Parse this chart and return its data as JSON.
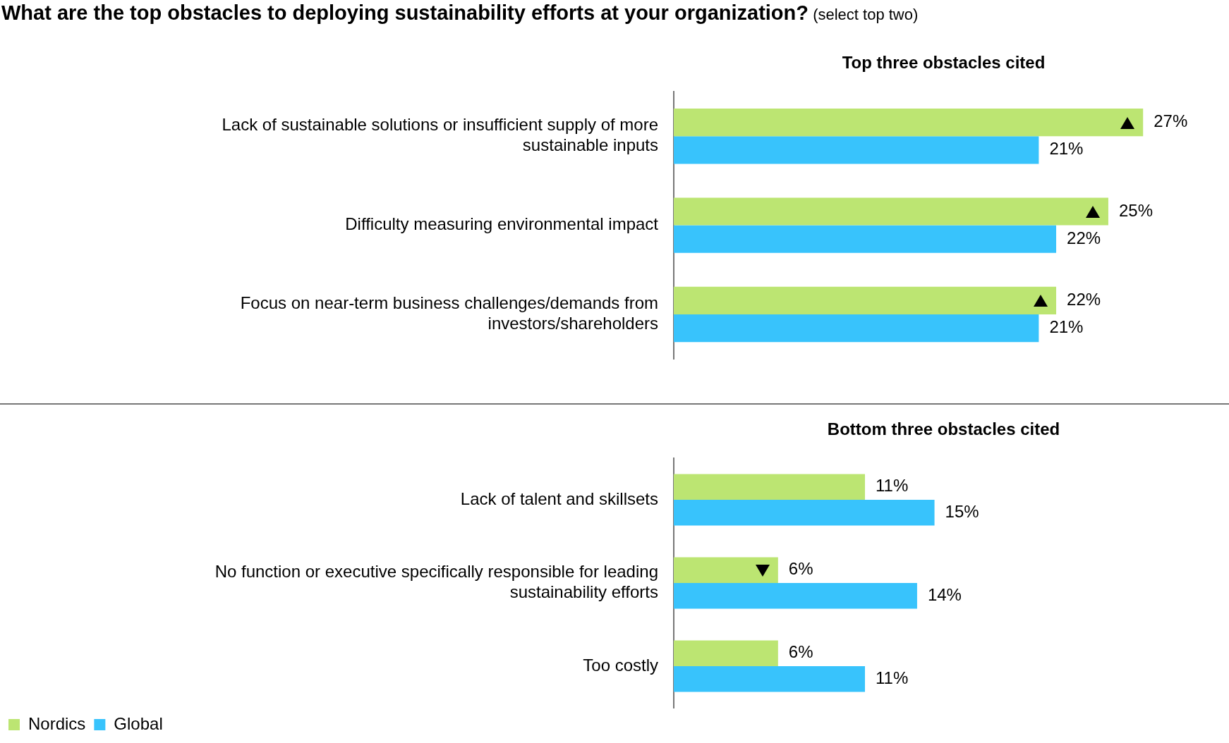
{
  "chart_data": [
    {
      "type": "bar",
      "orientation": "horizontal",
      "title": "What are the top obstacles to deploying sustainability efforts at your organization?",
      "subtitle": "(select top two)",
      "annotations": [
        "Top three obstacles cited"
      ],
      "categories": [
        "Lack of sustainable solutions or insufficient supply of more sustainable inputs",
        "Difficulty measuring environmental impact",
        "Focus on near-term business challenges/demands from investors/shareholders"
      ],
      "series": [
        {
          "color": "#bce572",
          "values": [
            27,
            25,
            22
          ],
          "value_labels": [
            "27%",
            "25%",
            "22%"
          ]
        },
        {
          "color": "#38c3fc",
          "values": [
            21,
            22,
            21
          ],
          "value_labels": [
            "21%",
            "22%",
            "21%"
          ]
        }
      ],
      "tick_labels": "y",
      "legend": false
    },
    {
      "type": "bar",
      "orientation": "horizontal",
      "title": "Bottom three obstacles cited",
      "categories": [
        "Lack of talent and skillsets",
        "No function or executive specifically responsible for leading sustainability efforts",
        "Too costly"
      ],
      "series": [
        {
          "name": "Nordics",
          "color": "#bce572",
          "values": [
            11,
            6,
            6
          ],
          "value_labels": [
            "11%",
            "6%",
            "6%"
          ]
        },
        {
          "name": "Global",
          "color": "#38c3fc",
          "values": [
            15,
            14,
            11
          ],
          "value_labels": [
            "15%",
            "14%",
            "11%"
          ]
        }
      ],
      "tick_labels": "y",
      "legend": "bottom left"
    }
  ]
}
